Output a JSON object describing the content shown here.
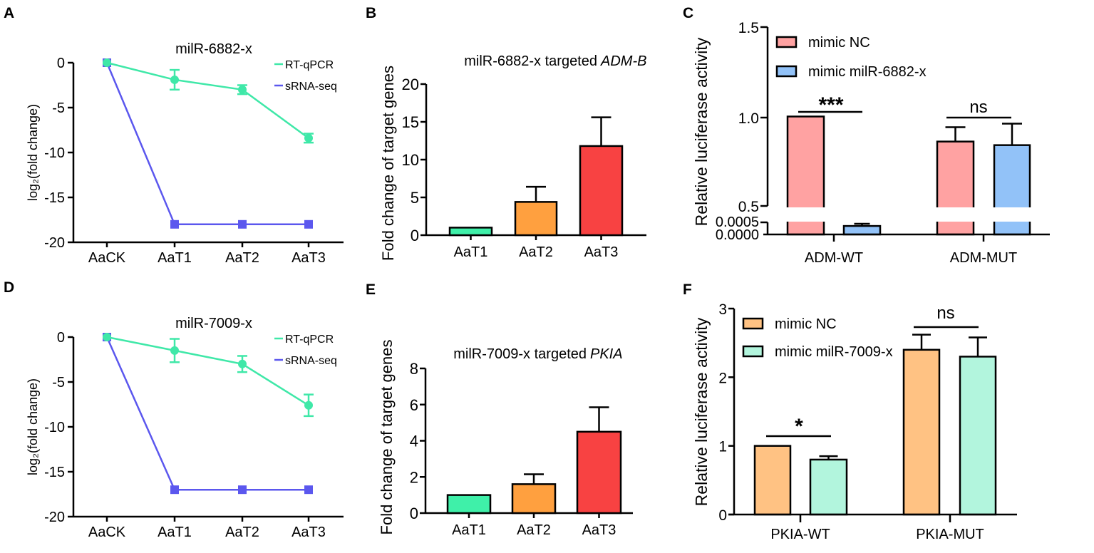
{
  "colors": {
    "rtqpcr": "#3fe8a8",
    "srnaseq": "#5b57ee",
    "t1": "#3ff0a9",
    "t2": "#ffa03f",
    "t3": "#f84242",
    "nc_c": "#ffa2a2",
    "mimic_c": "#92c2f8",
    "nc_f": "#ffc283",
    "mimic_f": "#b2f5dd"
  },
  "chart_data": [
    {
      "panel": "A",
      "type": "line",
      "title": "milR-6882-x",
      "ylabel": "log₂(fold change)",
      "xlabel": "",
      "categories": [
        "AaCK",
        "AaT1",
        "AaT2",
        "AaT3"
      ],
      "ylim": [
        -20,
        0
      ],
      "yticks": [
        "0",
        "-5",
        "-10",
        "-15",
        "-20"
      ],
      "legend": "top-right",
      "series": [
        {
          "name": "RT-qPCR",
          "values": [
            0,
            -1.9,
            -3.0,
            -8.4
          ],
          "errors": [
            0,
            1.1,
            0.5,
            0.5
          ]
        },
        {
          "name": "sRNA-seq",
          "values": [
            0,
            -18,
            -18,
            -18
          ],
          "errors": [
            0,
            0,
            0,
            0
          ]
        }
      ]
    },
    {
      "panel": "B",
      "type": "bar",
      "title": "milR-6882-x targeted",
      "title_italic": "ADM-B",
      "ylabel": "Fold change of target genes",
      "xlabel": "",
      "categories": [
        "AaT1",
        "AaT2",
        "AaT3"
      ],
      "ylim": [
        0,
        20
      ],
      "yticks": [
        "0",
        "5",
        "10",
        "15",
        "20"
      ],
      "values": [
        1.0,
        4.4,
        11.8
      ],
      "errors": [
        0,
        2.0,
        3.8
      ]
    },
    {
      "panel": "C",
      "type": "bar",
      "title": "",
      "ylabel": "Relative luciferase activity",
      "xlabel": "",
      "categories": [
        "ADM-WT",
        "ADM-MUT"
      ],
      "ylim_upper": [
        0.5,
        1.5
      ],
      "ylim_lower": [
        0,
        0.0005
      ],
      "yticks_upper": [
        "0.5",
        "1.0",
        "1.5"
      ],
      "yticks_lower": [
        "0.0000",
        "0.0005"
      ],
      "legend": "top-left",
      "series": [
        {
          "name": "mimic NC",
          "values": [
            1.0,
            0.86
          ],
          "errors": [
            0,
            0.08
          ]
        },
        {
          "name": "mimic milR-6882-x",
          "values": [
            0.00035,
            0.84
          ],
          "errors": [
            9e-05,
            0.12
          ]
        }
      ],
      "significance": [
        "***",
        "ns"
      ]
    },
    {
      "panel": "D",
      "type": "line",
      "title": "milR-7009-x",
      "ylabel": "log₂(fold change)",
      "xlabel": "",
      "categories": [
        "AaCK",
        "AaT1",
        "AaT2",
        "AaT3"
      ],
      "ylim": [
        -20,
        0
      ],
      "yticks": [
        "0",
        "-5",
        "-10",
        "-15",
        "-20"
      ],
      "legend": "top-right",
      "series": [
        {
          "name": "RT-qPCR",
          "values": [
            0,
            -1.5,
            -3.0,
            -7.6
          ],
          "errors": [
            0,
            1.3,
            0.9,
            1.2
          ]
        },
        {
          "name": "sRNA-seq",
          "values": [
            0,
            -17,
            -17,
            -17
          ],
          "errors": [
            0,
            0,
            0,
            0
          ]
        }
      ]
    },
    {
      "panel": "E",
      "type": "bar",
      "title": "milR-7009-x targeted",
      "title_italic": "PKIA",
      "ylabel": "Fold change of target genes",
      "xlabel": "",
      "categories": [
        "AaT1",
        "AaT2",
        "AaT3"
      ],
      "ylim": [
        0,
        8
      ],
      "yticks": [
        "0",
        "2",
        "4",
        "6",
        "8"
      ],
      "values": [
        1.0,
        1.6,
        4.5
      ],
      "errors": [
        0,
        0.55,
        1.35
      ]
    },
    {
      "panel": "F",
      "type": "bar",
      "title": "",
      "ylabel": "Relative luciferase activity",
      "xlabel": "",
      "categories": [
        "PKIA-WT",
        "PKIA-MUT"
      ],
      "ylim": [
        0,
        3
      ],
      "yticks": [
        "0",
        "1",
        "2",
        "3"
      ],
      "legend": "top-left",
      "series": [
        {
          "name": "mimic NC",
          "values": [
            1.0,
            2.4
          ],
          "errors": [
            0,
            0.22
          ]
        },
        {
          "name": "mimic milR-7009-x",
          "values": [
            0.8,
            2.3
          ],
          "errors": [
            0.05,
            0.28
          ]
        }
      ],
      "significance": [
        "*",
        "ns"
      ]
    }
  ]
}
